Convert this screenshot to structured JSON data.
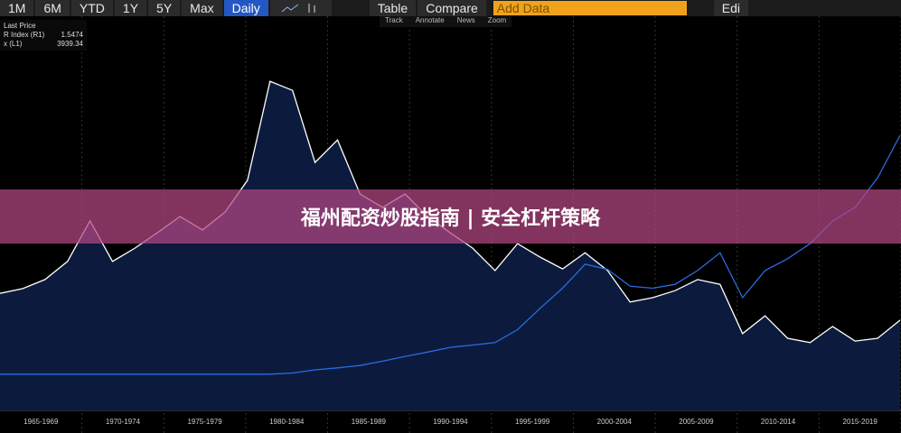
{
  "toolbar": {
    "ranges": [
      "1M",
      "6M",
      "YTD",
      "1Y",
      "5Y",
      "Max"
    ],
    "frequency": "Daily",
    "table": "Table",
    "compare": "Compare",
    "add_data": "Add Data",
    "edit": "Edi"
  },
  "tools": [
    "Track",
    "Annotate",
    "News",
    "Zoom"
  ],
  "legend_title": "Last Price",
  "banner": "福州配资炒股指南 | 安全杠杆策略",
  "chart_data": {
    "type": "line",
    "x_labels": [
      "1965-1969",
      "1970-1974",
      "1975-1979",
      "1980-1984",
      "1985-1989",
      "1990-1994",
      "1995-1999",
      "2000-2004",
      "2005-2009",
      "2010-2014",
      "2015-2019"
    ],
    "ylim": [
      0,
      100
    ],
    "series": [
      {
        "name": "R Index (R1)",
        "last": 1.5474,
        "color": "#2a6be0",
        "values": [
          9.2,
          9.2,
          9.2,
          9.2,
          9.2,
          9.2,
          9.2,
          9.2,
          9.2,
          9.2,
          9.2,
          9.2,
          9.2,
          9.5,
          10.3,
          10.8,
          11.4,
          12.5,
          13.7,
          14.8,
          16.0,
          16.6,
          17.2,
          20.5,
          25.9,
          31.0,
          37.1,
          35.8,
          31.5,
          31.0,
          32.0,
          35.5,
          40.0,
          28.6,
          35.5,
          38.5,
          42.3,
          48.1,
          51.5,
          59.0,
          69.8
        ]
      },
      {
        "name": "x (L1)",
        "last": 3939.34,
        "color": "#ffffff",
        "area": "#0c1b3d",
        "values": [
          29.7,
          30.9,
          33.2,
          37.8,
          48.1,
          37.8,
          41.2,
          45.1,
          49.2,
          45.8,
          50.3,
          58.4,
          83.5,
          81.2,
          62.9,
          68.6,
          54.9,
          51.5,
          54.9,
          49.2,
          45.1,
          41.2,
          35.5,
          42.3,
          38.9,
          35.9,
          40.0,
          35.5,
          27.5,
          28.6,
          30.4,
          33.2,
          32.0,
          19.5,
          24.0,
          18.3,
          17.2,
          21.3,
          17.6,
          18.3,
          22.9
        ]
      }
    ]
  }
}
